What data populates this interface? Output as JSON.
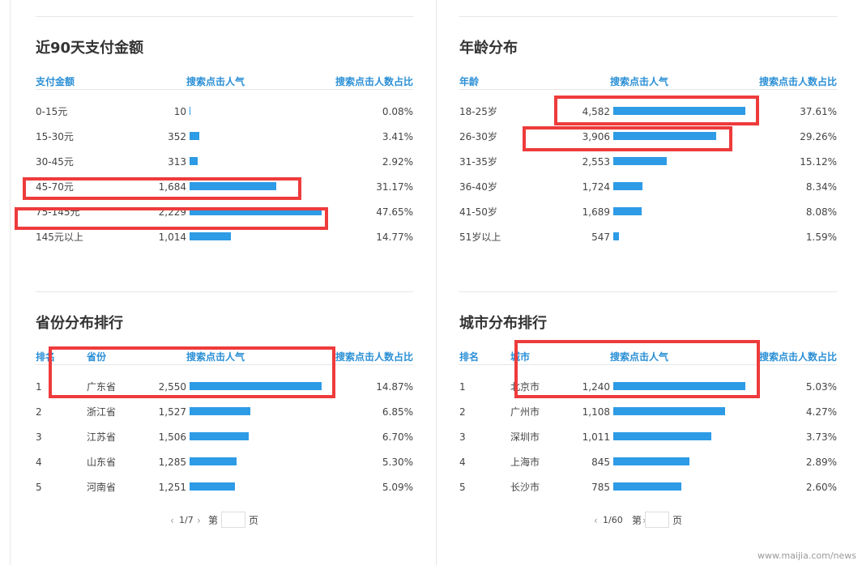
{
  "panels": [
    {
      "title": "近90天支付金额",
      "headers": [
        "支付金额",
        "搜索点击人气",
        "搜索点击人数占比"
      ],
      "rows": [
        {
          "label": "0-15元",
          "clicks": "10",
          "share": 0.08,
          "share_label": "0.08%"
        },
        {
          "label": "15-30元",
          "clicks": "352",
          "share": 3.41,
          "share_label": "3.41%"
        },
        {
          "label": "30-45元",
          "clicks": "313",
          "share": 2.92,
          "share_label": "2.92%"
        },
        {
          "label": "45-70元",
          "clicks": "1,684",
          "share": 31.17,
          "share_label": "31.17%"
        },
        {
          "label": "75-145元",
          "clicks": "2,229",
          "share": 47.65,
          "share_label": "47.65%"
        },
        {
          "label": "145元以上",
          "clicks": "1,014",
          "share": 14.77,
          "share_label": "14.77%"
        }
      ]
    },
    {
      "title": "年龄分布",
      "headers": [
        "年龄",
        "搜索点击人气",
        "搜索点击人数占比"
      ],
      "rows": [
        {
          "label": "18-25岁",
          "clicks": "4,582",
          "share": 37.61,
          "share_label": "37.61%"
        },
        {
          "label": "26-30岁",
          "clicks": "3,906",
          "share": 29.26,
          "share_label": "29.26%"
        },
        {
          "label": "31-35岁",
          "clicks": "2,553",
          "share": 15.12,
          "share_label": "15.12%"
        },
        {
          "label": "36-40岁",
          "clicks": "1,724",
          "share": 8.34,
          "share_label": "8.34%"
        },
        {
          "label": "41-50岁",
          "clicks": "1,689",
          "share": 8.08,
          "share_label": "8.08%"
        },
        {
          "label": "51岁以上",
          "clicks": "547",
          "share": 1.59,
          "share_label": "1.59%"
        }
      ]
    },
    {
      "title": "省份分布排行",
      "headers": [
        "排名",
        "省份",
        "搜索点击人气",
        "搜索点击人数占比"
      ],
      "rows": [
        {
          "rank": "1",
          "label": "广东省",
          "clicks": "2,550",
          "share": 14.87,
          "share_label": "14.87%"
        },
        {
          "rank": "2",
          "label": "浙江省",
          "clicks": "1,527",
          "share": 6.85,
          "share_label": "6.85%"
        },
        {
          "rank": "3",
          "label": "江苏省",
          "clicks": "1,506",
          "share": 6.7,
          "share_label": "6.70%"
        },
        {
          "rank": "4",
          "label": "山东省",
          "clicks": "1,285",
          "share": 5.3,
          "share_label": "5.30%"
        },
        {
          "rank": "5",
          "label": "河南省",
          "clicks": "1,251",
          "share": 5.09,
          "share_label": "5.09%"
        }
      ],
      "pagination": {
        "pages": "1/7",
        "prefix": "第",
        "suffix": "页"
      }
    },
    {
      "title": "城市分布排行",
      "headers": [
        "排名",
        "城市",
        "搜索点击人气",
        "搜索点击人数占比"
      ],
      "rows": [
        {
          "rank": "1",
          "label": "北京市",
          "clicks": "1,240",
          "share": 5.03,
          "share_label": "5.03%"
        },
        {
          "rank": "2",
          "label": "广州市",
          "clicks": "1,108",
          "share": 4.27,
          "share_label": "4.27%"
        },
        {
          "rank": "3",
          "label": "深圳市",
          "clicks": "1,011",
          "share": 3.73,
          "share_label": "3.73%"
        },
        {
          "rank": "4",
          "label": "上海市",
          "clicks": "845",
          "share": 2.89,
          "share_label": "2.89%"
        },
        {
          "rank": "5",
          "label": "长沙市",
          "clicks": "785",
          "share": 2.6,
          "share_label": "2.60%"
        }
      ],
      "pagination": {
        "pages": "1/60",
        "prefix": "第",
        "suffix": "页"
      }
    }
  ],
  "watermark": "www.maijia.com/news"
}
